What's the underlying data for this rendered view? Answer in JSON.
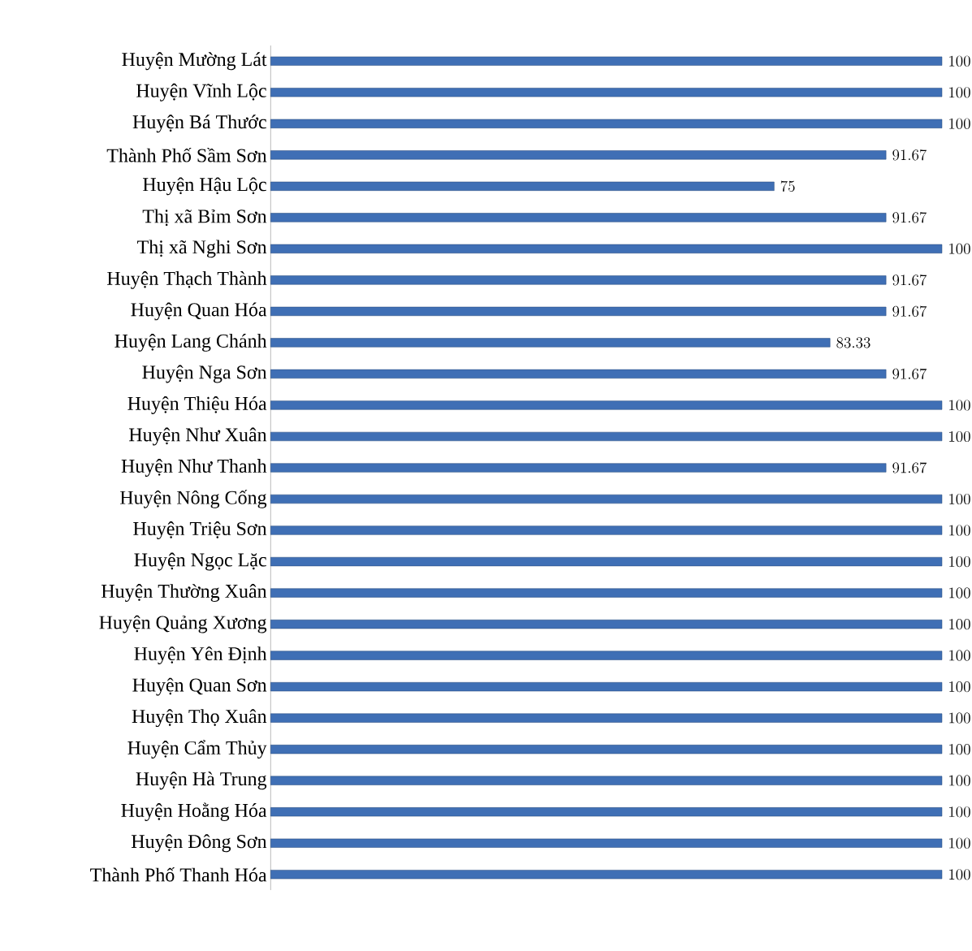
{
  "chart_data": {
    "type": "bar",
    "orientation": "horizontal",
    "categories": [
      "Huyện Mường Lát",
      "Huyện Vĩnh Lộc",
      "Huyện Bá Thước",
      "Thành Phố Sầm Sơn",
      "Huyện Hậu Lộc",
      "Thị xã Bỉm Sơn",
      "Thị xã Nghi Sơn",
      "Huyện Thạch Thành",
      "Huyện Quan Hóa",
      "Huyện Lang Chánh",
      "Huyện Nga Sơn",
      "Huyện Thiệu Hóa",
      "Huyện Như Xuân",
      "Huyện Như Thanh",
      "Huyện Nông Cống",
      "Huyện Triệu Sơn",
      "Huyện Ngọc Lặc",
      "Huyện Thường Xuân",
      "Huyện Quảng Xương",
      "Huyện Yên Định",
      "Huyện Quan Sơn",
      "Huyện Thọ Xuân",
      "Huyện Cẩm Thủy",
      "Huyện Hà Trung",
      "Huyện Hoằng Hóa",
      "Huyện Đông Sơn",
      "Thành Phố Thanh Hóa"
    ],
    "values": [
      100,
      100,
      100,
      91.67,
      75,
      91.67,
      100,
      91.67,
      91.67,
      83.33,
      91.67,
      100,
      100,
      91.67,
      100,
      100,
      100,
      100,
      100,
      100,
      100,
      100,
      100,
      100,
      100,
      100,
      100
    ],
    "color": "#3f6fb5",
    "xlim": [
      0,
      100
    ],
    "data_labels": true
  }
}
